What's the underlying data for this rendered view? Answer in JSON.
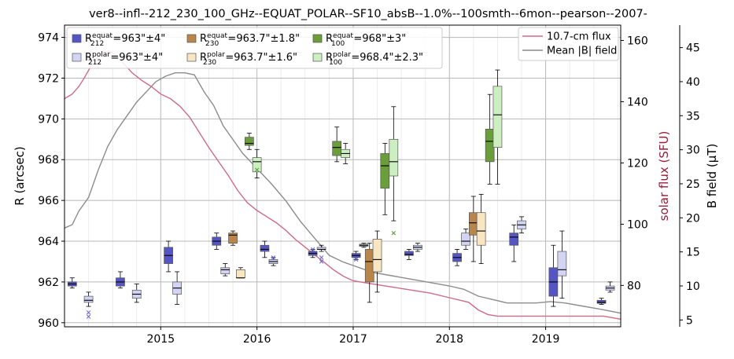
{
  "chart_data": {
    "type": "box",
    "title": "ver8--infl--212_230_100_GHz--EQUAT_POLAR--SF10_absB--1.0%--100smth--6mon--pearson--2007-",
    "xlabel": "",
    "ylabel": "R (arcsec)",
    "ylabel_right": "solar flux (SFU)",
    "ylabel_right2": "B field (μT)",
    "xlim": [
      2014.0,
      2019.78
    ],
    "ylim": [
      959.8,
      974.6
    ],
    "ylim_flux": [
      66.5,
      165.0
    ],
    "ylim_bfield": [
      4.0,
      48.3
    ],
    "x_ticks": [
      2015,
      2016,
      2017,
      2018,
      2019
    ],
    "x_tick_labels": [
      "2015",
      "2016",
      "2017",
      "2018",
      "2019"
    ],
    "y_ticks": [
      960,
      962,
      964,
      966,
      968,
      970,
      972,
      974
    ],
    "y_tick_labels": [
      "960",
      "962",
      "964",
      "966",
      "968",
      "970",
      "972",
      "974"
    ],
    "flux_ticks": [
      80,
      100,
      120,
      140,
      160
    ],
    "flux_tick_labels": [
      "80",
      "100",
      "120",
      "140",
      "160"
    ],
    "bfield_ticks": [
      5,
      10,
      15,
      20,
      25,
      30,
      35,
      40,
      45
    ],
    "bfield_tick_labels": [
      "5",
      "10",
      "15",
      "20",
      "25",
      "30",
      "35",
      "40",
      "45"
    ],
    "grid": true,
    "colors": {
      "212_equat": "#5555c4",
      "212_polar": "#d3d3f3",
      "230_equat": "#b8854a",
      "230_polar": "#f8e5c2",
      "100_equat": "#6a9e3a",
      "100_polar": "#cdeec0",
      "flux_line": "#cd6b88",
      "bfield_line": "#8c8c8c",
      "flux_axis_label": "#9a1b38"
    },
    "legend": {
      "position": "top-left",
      "entries": [
        {
          "series": "212_equat",
          "base": "R",
          "sub": "212",
          "sup": "equat",
          "value": "=963\"±4\""
        },
        {
          "series": "212_polar",
          "base": "R",
          "sub": "212",
          "sup": "polar",
          "value": "=963\"±4\""
        },
        {
          "series": "230_equat",
          "base": "R",
          "sub": "230",
          "sup": "equat",
          "value": "=963.7\"±1.8\""
        },
        {
          "series": "230_polar",
          "base": "R",
          "sub": "230",
          "sup": "polar",
          "value": "=963.7\"±1.6\""
        },
        {
          "series": "100_equat",
          "base": "R",
          "sub": "100",
          "sup": "equat",
          "value": "=968\"±3\""
        },
        {
          "series": "100_polar",
          "base": "R",
          "sub": "100",
          "sup": "polar",
          "value": "=968.4\"±2.3\""
        }
      ]
    },
    "legend_lines": {
      "position": "top-right",
      "entries": [
        {
          "series": "flux_line",
          "label": "10.7-cm flux"
        },
        {
          "series": "bfield_line",
          "label": "Mean |B| field"
        }
      ]
    },
    "boxes": [
      {
        "series": "212_equat",
        "x": 2014.08,
        "whislo": 961.7,
        "q1": 961.8,
        "med": 961.9,
        "q3": 962.0,
        "whishi": 962.2,
        "fliers": []
      },
      {
        "series": "212_polar",
        "x": 2014.25,
        "whislo": 960.8,
        "q1": 961.0,
        "med": 961.1,
        "q3": 961.3,
        "whishi": 961.5,
        "fliers": [
          960.5,
          960.3
        ]
      },
      {
        "series": "212_equat",
        "x": 2014.58,
        "whislo": 961.7,
        "q1": 961.8,
        "med": 962.0,
        "q3": 962.2,
        "whishi": 962.5,
        "fliers": []
      },
      {
        "series": "212_polar",
        "x": 2014.75,
        "whislo": 961.0,
        "q1": 961.2,
        "med": 961.4,
        "q3": 961.6,
        "whishi": 961.9,
        "fliers": []
      },
      {
        "series": "212_equat",
        "x": 2015.08,
        "whislo": 962.5,
        "q1": 962.9,
        "med": 963.3,
        "q3": 963.7,
        "whishi": 964.0,
        "fliers": []
      },
      {
        "series": "212_polar",
        "x": 2015.17,
        "whislo": 960.9,
        "q1": 961.4,
        "med": 961.7,
        "q3": 962.0,
        "whishi": 962.5,
        "fliers": []
      },
      {
        "series": "212_equat",
        "x": 2015.58,
        "whislo": 963.6,
        "q1": 963.8,
        "med": 964.0,
        "q3": 964.2,
        "whishi": 964.4,
        "fliers": []
      },
      {
        "series": "212_polar",
        "x": 2015.67,
        "whislo": 962.3,
        "q1": 962.4,
        "med": 962.6,
        "q3": 962.7,
        "whishi": 962.9,
        "fliers": []
      },
      {
        "series": "230_equat",
        "x": 2015.75,
        "whislo": 963.8,
        "q1": 963.9,
        "med": 964.3,
        "q3": 964.4,
        "whishi": 964.5,
        "fliers": []
      },
      {
        "series": "230_polar",
        "x": 2015.83,
        "whislo": 962.2,
        "q1": 962.2,
        "med": 962.2,
        "q3": 962.6,
        "whishi": 962.7,
        "fliers": []
      },
      {
        "series": "100_equat",
        "x": 2015.92,
        "whislo": 968.5,
        "q1": 968.7,
        "med": 968.8,
        "q3": 969.1,
        "whishi": 969.3,
        "fliers": []
      },
      {
        "series": "100_polar",
        "x": 2016.0,
        "whislo": 967.1,
        "q1": 967.4,
        "med": 967.9,
        "q3": 968.1,
        "whishi": 968.5,
        "fliers": [
          967.5
        ]
      },
      {
        "series": "212_equat",
        "x": 2016.08,
        "whislo": 963.2,
        "q1": 963.5,
        "med": 963.6,
        "q3": 963.8,
        "whishi": 964.0,
        "fliers": []
      },
      {
        "series": "212_polar",
        "x": 2016.17,
        "whislo": 962.8,
        "q1": 962.9,
        "med": 963.0,
        "q3": 963.1,
        "whishi": 963.2,
        "fliers": [
          963.2
        ]
      },
      {
        "series": "212_equat",
        "x": 2016.58,
        "whislo": 963.2,
        "q1": 963.3,
        "med": 963.4,
        "q3": 963.5,
        "whishi": 963.6,
        "fliers": [
          963.6
        ]
      },
      {
        "series": "212_polar",
        "x": 2016.67,
        "whislo": 963.5,
        "q1": 963.6,
        "med": 963.6,
        "q3": 963.7,
        "whishi": 963.8,
        "fliers": [
          963.2,
          963.0
        ]
      },
      {
        "series": "100_equat",
        "x": 2016.83,
        "whislo": 967.9,
        "q1": 968.2,
        "med": 968.6,
        "q3": 968.9,
        "whishi": 969.6,
        "fliers": []
      },
      {
        "series": "100_polar",
        "x": 2016.92,
        "whislo": 967.8,
        "q1": 968.1,
        "med": 968.3,
        "q3": 968.5,
        "whishi": 968.8,
        "fliers": []
      },
      {
        "series": "212_equat",
        "x": 2017.03,
        "whislo": 963.1,
        "q1": 963.2,
        "med": 963.3,
        "q3": 963.4,
        "whishi": 963.5,
        "fliers": [
          963.1
        ]
      },
      {
        "series": "212_polar",
        "x": 2017.11,
        "whislo": 963.7,
        "q1": 963.75,
        "med": 963.8,
        "q3": 963.85,
        "whishi": 963.9,
        "fliers": []
      },
      {
        "series": "230_equat",
        "x": 2017.17,
        "whislo": 961.0,
        "q1": 962.0,
        "med": 963.0,
        "q3": 963.6,
        "whishi": 963.9,
        "fliers": []
      },
      {
        "series": "230_polar",
        "x": 2017.25,
        "whislo": 961.5,
        "q1": 962.5,
        "med": 963.1,
        "q3": 964.1,
        "whishi": 964.5,
        "fliers": []
      },
      {
        "series": "100_equat",
        "x": 2017.33,
        "whislo": 965.3,
        "q1": 966.6,
        "med": 967.7,
        "q3": 968.3,
        "whishi": 968.8,
        "fliers": []
      },
      {
        "series": "100_polar",
        "x": 2017.42,
        "whislo": 965.0,
        "q1": 967.2,
        "med": 967.9,
        "q3": 969.0,
        "whishi": 970.6,
        "fliers": [
          964.4
        ]
      },
      {
        "series": "212_equat",
        "x": 2017.58,
        "whislo": 963.1,
        "q1": 963.3,
        "med": 963.35,
        "q3": 963.5,
        "whishi": 963.6,
        "fliers": []
      },
      {
        "series": "212_polar",
        "x": 2017.67,
        "whislo": 963.5,
        "q1": 963.6,
        "med": 963.7,
        "q3": 963.8,
        "whishi": 963.9,
        "fliers": []
      },
      {
        "series": "212_equat",
        "x": 2018.08,
        "whislo": 962.8,
        "q1": 963.0,
        "med": 963.2,
        "q3": 963.4,
        "whishi": 963.6,
        "fliers": []
      },
      {
        "series": "212_polar",
        "x": 2018.17,
        "whislo": 963.6,
        "q1": 963.8,
        "med": 964.0,
        "q3": 964.4,
        "whishi": 964.6,
        "fliers": []
      },
      {
        "series": "230_equat",
        "x": 2018.25,
        "whislo": 963.0,
        "q1": 964.3,
        "med": 964.9,
        "q3": 965.4,
        "whishi": 966.2,
        "fliers": []
      },
      {
        "series": "230_polar",
        "x": 2018.33,
        "whislo": 962.9,
        "q1": 963.8,
        "med": 964.5,
        "q3": 965.4,
        "whishi": 966.3,
        "fliers": []
      },
      {
        "series": "100_equat",
        "x": 2018.42,
        "whislo": 966.8,
        "q1": 967.9,
        "med": 968.9,
        "q3": 969.5,
        "whishi": 971.2,
        "fliers": []
      },
      {
        "series": "100_polar",
        "x": 2018.5,
        "whislo": 966.8,
        "q1": 968.6,
        "med": 970.2,
        "q3": 971.6,
        "whishi": 972.4,
        "fliers": []
      },
      {
        "series": "212_equat",
        "x": 2018.67,
        "whislo": 963.0,
        "q1": 963.8,
        "med": 964.2,
        "q3": 964.4,
        "whishi": 964.8,
        "fliers": []
      },
      {
        "series": "212_polar",
        "x": 2018.75,
        "whislo": 964.4,
        "q1": 964.6,
        "med": 964.8,
        "q3": 965.0,
        "whishi": 965.2,
        "fliers": []
      },
      {
        "series": "212_equat",
        "x": 2019.08,
        "whislo": 960.8,
        "q1": 961.3,
        "med": 962.0,
        "q3": 962.7,
        "whishi": 963.8,
        "fliers": []
      },
      {
        "series": "212_polar",
        "x": 2019.17,
        "whislo": 961.2,
        "q1": 962.3,
        "med": 962.6,
        "q3": 963.5,
        "whishi": 964.5,
        "fliers": []
      },
      {
        "series": "212_equat",
        "x": 2019.58,
        "whislo": 960.9,
        "q1": 960.95,
        "med": 961.0,
        "q3": 961.1,
        "whishi": 961.2,
        "fliers": []
      },
      {
        "series": "212_polar",
        "x": 2019.67,
        "whislo": 961.5,
        "q1": 961.6,
        "med": 961.7,
        "q3": 961.8,
        "whishi": 962.0,
        "fliers": []
      }
    ],
    "flux_series": {
      "axis": "flux",
      "x": [
        2014.0,
        2014.08,
        2014.15,
        2014.2,
        2014.3,
        2014.4,
        2014.5,
        2014.6,
        2014.7,
        2014.8,
        2014.9,
        2015.0,
        2015.1,
        2015.2,
        2015.3,
        2015.4,
        2015.5,
        2015.6,
        2015.7,
        2015.8,
        2015.9,
        2016.0,
        2016.1,
        2016.2,
        2016.3,
        2016.4,
        2016.5,
        2016.6,
        2016.7,
        2016.8,
        2016.9,
        2017.0,
        2017.2,
        2017.4,
        2017.6,
        2017.8,
        2018.0,
        2018.2,
        2018.3,
        2018.4,
        2018.5,
        2018.6,
        2018.8,
        2019.0,
        2019.2,
        2019.4,
        2019.6,
        2019.78
      ],
      "y": [
        141.0,
        142.5,
        145.0,
        147.5,
        153.0,
        156.5,
        156.0,
        153.0,
        149.5,
        147.0,
        145.0,
        142.5,
        141.0,
        138.5,
        135.0,
        130.0,
        125.0,
        120.5,
        116.0,
        111.0,
        107.0,
        104.5,
        102.5,
        100.5,
        98.0,
        95.0,
        92.5,
        90.0,
        87.5,
        85.0,
        83.0,
        81.5,
        80.5,
        79.5,
        78.5,
        77.5,
        76.0,
        74.5,
        72.0,
        70.5,
        70.0,
        70.0,
        70.0,
        70.0,
        70.0,
        70.0,
        70.0,
        69.0
      ]
    },
    "bfield_series": {
      "axis": "bfield",
      "x": [
        2014.0,
        2014.08,
        2014.15,
        2014.25,
        2014.35,
        2014.45,
        2014.55,
        2014.65,
        2014.75,
        2014.85,
        2014.95,
        2015.05,
        2015.15,
        2015.25,
        2015.35,
        2015.45,
        2015.55,
        2015.65,
        2015.75,
        2015.85,
        2015.95,
        2016.05,
        2016.15,
        2016.3,
        2016.45,
        2016.6,
        2016.75,
        2016.9,
        2017.0,
        2017.2,
        2017.4,
        2017.6,
        2017.8,
        2018.0,
        2018.15,
        2018.3,
        2018.45,
        2018.6,
        2018.75,
        2018.9,
        2019.05,
        2019.2,
        2019.4,
        2019.6,
        2019.78
      ],
      "y": [
        18.5,
        19.0,
        21.0,
        23.0,
        27.0,
        30.5,
        33.0,
        35.0,
        37.0,
        38.5,
        40.0,
        40.8,
        41.3,
        41.3,
        41.0,
        38.5,
        36.5,
        33.5,
        31.5,
        29.5,
        28.0,
        26.5,
        25.0,
        22.5,
        19.5,
        17.0,
        14.5,
        13.5,
        13.0,
        12.0,
        11.5,
        11.0,
        10.5,
        10.0,
        9.5,
        8.5,
        8.0,
        7.5,
        7.5,
        7.5,
        7.7,
        7.5,
        7.0,
        6.5,
        6.0
      ]
    }
  }
}
